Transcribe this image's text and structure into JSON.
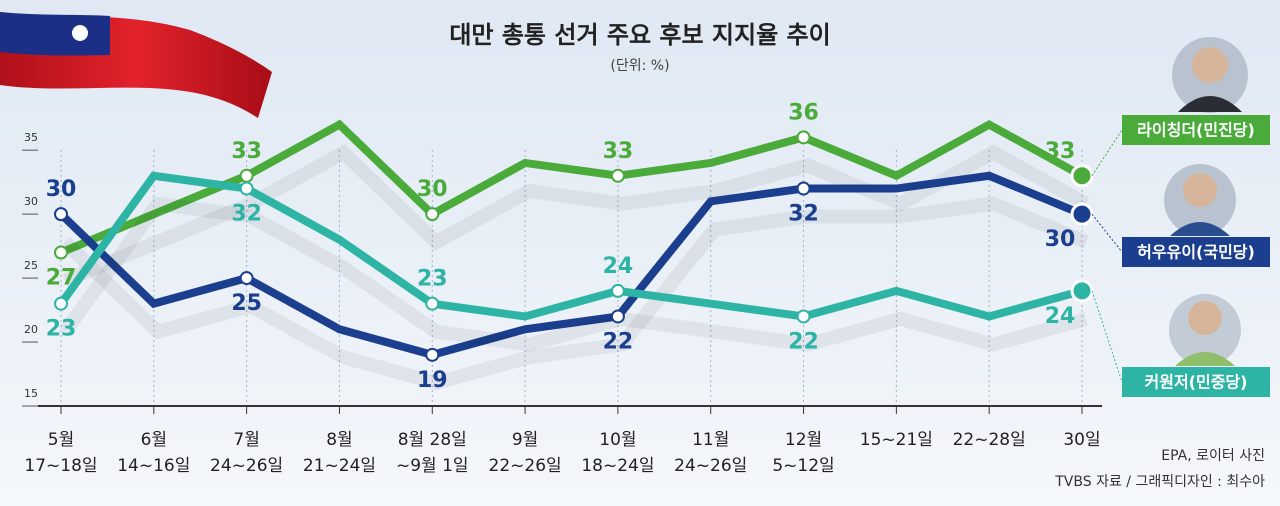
{
  "chart_data": {
    "type": "line",
    "title": "대만 총통 선거 주요 후보 지지율 추이",
    "subtitle": "(단위: %)",
    "categories": [
      [
        "5월",
        "17~18일"
      ],
      [
        "6월",
        "14~16일"
      ],
      [
        "7월",
        "24~26일"
      ],
      [
        "8월",
        "21~24일"
      ],
      [
        "8월 28일",
        "~9월 1일"
      ],
      [
        "9월",
        "22~26일"
      ],
      [
        "10월",
        "18~24일"
      ],
      [
        "11월",
        "24~26일"
      ],
      [
        "12월",
        "5~12일"
      ],
      [
        "15~21일",
        null
      ],
      [
        "22~28일",
        null
      ],
      [
        "30일",
        null
      ]
    ],
    "series": [
      {
        "name": "라이칭더(민진당)",
        "color": "#4aab3b",
        "values": [
          27,
          30,
          33,
          37,
          30,
          34,
          33,
          34,
          36,
          33,
          37,
          33
        ]
      },
      {
        "name": "허우유이(국민당)",
        "color": "#1b3f8e",
        "values": [
          30,
          23,
          25,
          21,
          19,
          21,
          22,
          31,
          32,
          32,
          33,
          30
        ]
      },
      {
        "name": "커원저(민중당)",
        "color": "#2eb4a4",
        "values": [
          23,
          33,
          32,
          28,
          23,
          22,
          24,
          23,
          22,
          24,
          22,
          24
        ]
      }
    ],
    "labeled_points": [
      0,
      2,
      4,
      6,
      8,
      11
    ],
    "ylim": [
      15,
      39
    ],
    "yticks": [
      15,
      20,
      25,
      30,
      35
    ],
    "grid": true,
    "source": [
      "EPA, 로이터 사진",
      "TVBS 자료 / 그래픽디자인 : 최수아"
    ]
  }
}
